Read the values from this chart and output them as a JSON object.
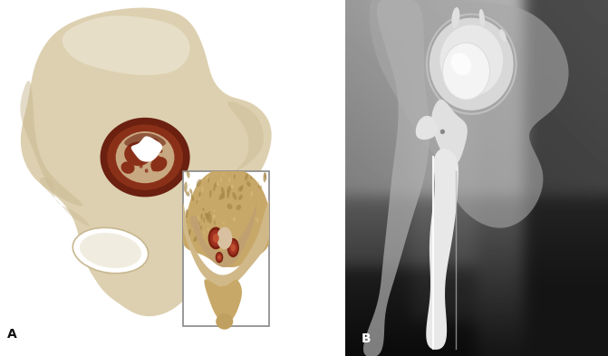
{
  "figure_width": 6.71,
  "figure_height": 3.93,
  "dpi": 100,
  "background_color": "#ffffff",
  "label_A": "A",
  "label_B": "B",
  "label_fontsize": 10,
  "panel_split": 0.568,
  "bone_base": "#ddd0b0",
  "bone_light": "#ede8d8",
  "bone_mid": "#c8b890",
  "bone_dark": "#b8a070",
  "bone_shadow": "#a08050",
  "defect_dark": "#6b2010",
  "defect_mid": "#8b3018",
  "defect_light": "#c05028",
  "defect_cream": "#c8a880",
  "white_hole": "#ffffff",
  "inset_border": "#999999",
  "xray_light": "#c8c8c8",
  "xray_mid": "#888888",
  "xray_dark": "#303030",
  "xray_black": "#080808",
  "implant_white": "#f0f0f0",
  "implant_bright": "#ffffff",
  "implant_gray": "#d0d0d0"
}
